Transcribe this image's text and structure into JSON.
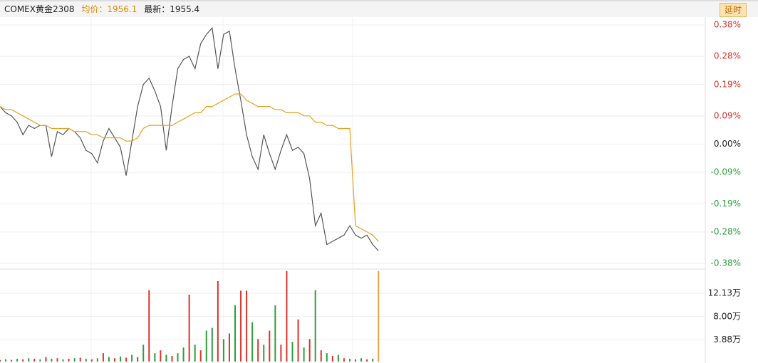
{
  "header": {
    "instrument": "COMEX黄金2308",
    "average": "均价：1956.1",
    "latest": "最新：1955.4",
    "button": "延时"
  },
  "chart_data": [
    {
      "type": "line",
      "xlim": [
        0,
        123
      ],
      "ylim": [
        -0.38,
        0.38
      ],
      "grid": true,
      "yticks": [
        {
          "value": 0.38,
          "label": "0.38%"
        },
        {
          "value": 0.28,
          "label": "0.28%"
        },
        {
          "value": 0.19,
          "label": "0.19%"
        },
        {
          "value": 0.09,
          "label": "0.09%"
        },
        {
          "value": 0,
          "label": "0.00%"
        },
        {
          "value": -0.09,
          "label": "-0.09%"
        },
        {
          "value": -0.19,
          "label": "-0.19%"
        },
        {
          "value": -0.28,
          "label": "-0.28%"
        },
        {
          "value": -0.38,
          "label": "-0.38%"
        }
      ],
      "series": [
        {
          "color": "#555555",
          "values": [
            0.12,
            0.1,
            0.09,
            0.07,
            0.03,
            0.06,
            0.05,
            0.06,
            0.06,
            -0.04,
            0.04,
            0.03,
            0.05,
            0.04,
            0.02,
            -0.02,
            -0.03,
            -0.06,
            0.01,
            0.05,
            0.02,
            -0.01,
            -0.1,
            0.01,
            0.12,
            0.19,
            0.21,
            0.17,
            0.12,
            -0.02,
            0.12,
            0.24,
            0.27,
            0.28,
            0.24,
            0.32,
            0.35,
            0.37,
            0.24,
            0.35,
            0.36,
            0.24,
            0.14,
            0.03,
            -0.04,
            -0.08,
            0.03,
            -0.03,
            -0.08,
            -0.02,
            0.03,
            -0.02,
            -0.01,
            -0.03,
            -0.11,
            -0.26,
            -0.22,
            -0.32,
            -0.31,
            -0.3,
            -0.29,
            -0.26,
            -0.29,
            -0.3,
            -0.29,
            -0.32,
            -0.34
          ]
        },
        {
          "color": "#e8a020",
          "values": [
            0.12,
            0.11,
            0.11,
            0.1,
            0.09,
            0.08,
            0.07,
            0.06,
            0.06,
            0.05,
            0.05,
            0.05,
            0.05,
            0.04,
            0.04,
            0.04,
            0.03,
            0.03,
            0.02,
            0.02,
            0.02,
            0.02,
            0.01,
            0.01,
            0.02,
            0.05,
            0.06,
            0.06,
            0.06,
            0.06,
            0.06,
            0.07,
            0.08,
            0.09,
            0.1,
            0.1,
            0.12,
            0.12,
            0.13,
            0.14,
            0.15,
            0.16,
            0.16,
            0.14,
            0.13,
            0.12,
            0.12,
            0.12,
            0.11,
            0.11,
            0.1,
            0.1,
            0.1,
            0.09,
            0.09,
            0.07,
            0.07,
            0.06,
            0.06,
            0.05,
            0.05,
            0.05,
            -0.26,
            -0.27,
            -0.28,
            -0.29,
            -0.31
          ]
        }
      ]
    },
    {
      "type": "bar",
      "xlim": [
        0,
        123
      ],
      "ylim": [
        0,
        16.2
      ],
      "grid": true,
      "yticks": [
        {
          "value": 12.13,
          "label": "12.13万"
        },
        {
          "value": 8.0,
          "label": "8.00万"
        },
        {
          "value": 3.88,
          "label": "3.88万"
        }
      ],
      "values": [
        0.3,
        0.4,
        0.3,
        0.5,
        0.4,
        0.6,
        0.5,
        0.4,
        0.8,
        0.5,
        0.6,
        0.4,
        0.5,
        0.6,
        0.7,
        0.5,
        0.4,
        0.6,
        1.5,
        0.8,
        0.6,
        0.9,
        0.7,
        1.2,
        0.8,
        3.0,
        12.7,
        1.5,
        2.0,
        1.2,
        1.0,
        1.5,
        2.5,
        11.9,
        3.0,
        2.0,
        5.5,
        6.0,
        14.3,
        4.0,
        5.0,
        10.0,
        12.6,
        12.6,
        7.0,
        4.0,
        3.0,
        5.5,
        10.0,
        3.0,
        16.1,
        3.5,
        7.5,
        2.5,
        4.0,
        12.7,
        2.0,
        1.5,
        1.0,
        1.2,
        0.6,
        0.5,
        0.4,
        0.6,
        0.4,
        0.5,
        16.1
      ],
      "colors": [
        "#d9342b",
        "#2e9e3a",
        "#d9342b",
        "#2e9e3a",
        "#d9342b",
        "#2e9e3a",
        "#d9342b",
        "#2e9e3a",
        "#d9342b",
        "#2e9e3a",
        "#d9342b",
        "#2e9e3a",
        "#d9342b",
        "#2e9e3a",
        "#d9342b",
        "#2e9e3a",
        "#d9342b",
        "#2e9e3a",
        "#d9342b",
        "#2e9e3a",
        "#d9342b",
        "#2e9e3a",
        "#d9342b",
        "#2e9e3a",
        "#d9342b",
        "#2e9e3a",
        "#d9342b",
        "#2e9e3a",
        "#d9342b",
        "#2e9e3a",
        "#d9342b",
        "#2e9e3a",
        "#2e9e3a",
        "#d9342b",
        "#2e9e3a",
        "#d9342b",
        "#2e9e3a",
        "#2e9e3a",
        "#d9342b",
        "#2e9e3a",
        "#d9342b",
        "#2e9e3a",
        "#d9342b",
        "#d9342b",
        "#2e9e3a",
        "#d9342b",
        "#2e9e3a",
        "#d9342b",
        "#2e9e3a",
        "#d9342b",
        "#d9342b",
        "#2e9e3a",
        "#d9342b",
        "#2e9e3a",
        "#d9342b",
        "#2e9e3a",
        "#d9342b",
        "#2e9e3a",
        "#d9342b",
        "#2e9e3a",
        "#d9342b",
        "#2e9e3a",
        "#d9342b",
        "#2e9e3a",
        "#d9342b",
        "#2e9e3a",
        "#f0a040"
      ]
    }
  ]
}
